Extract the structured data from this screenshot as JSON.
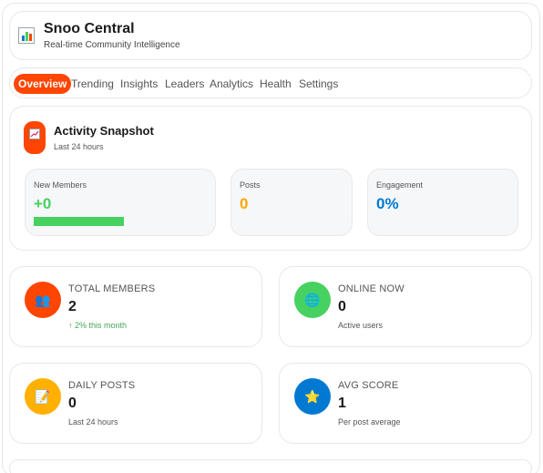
{
  "app": {
    "title": "Snoo Central",
    "subtitle": "Real-time Community Intelligence",
    "icon": "bar-chart-icon"
  },
  "tabs": [
    {
      "label": "Overview",
      "active": true
    },
    {
      "label": "Trending",
      "active": false
    },
    {
      "label": "Insights",
      "active": false
    },
    {
      "label": "Leaders",
      "active": false
    },
    {
      "label": "Analytics",
      "active": false
    },
    {
      "label": "Health",
      "active": false
    },
    {
      "label": "Settings",
      "active": false
    }
  ],
  "snapshot": {
    "title": "Activity Snapshot",
    "subtitle": "Last 24 hours",
    "icon": "trend-chart-icon",
    "metrics": [
      {
        "label": "New Members",
        "value": "+0",
        "color": "#46d160"
      },
      {
        "label": "Posts",
        "value": "0",
        "color": "#ffa500"
      },
      {
        "label": "Engagement",
        "value": "0%",
        "color": "#0079d3"
      }
    ]
  },
  "stats": [
    {
      "label": "Total Members",
      "value": "2",
      "note": "↑ 2% this month",
      "icon": "people-icon",
      "icon_glyph": "👥",
      "color": "#ff4500"
    },
    {
      "label": "Online Now",
      "value": "0",
      "note": "Active users",
      "icon": "globe-icon",
      "icon_glyph": "🌐",
      "color": "#46d160"
    },
    {
      "label": "Daily Posts",
      "value": "0",
      "note": "Last 24 hours",
      "icon": "memo-icon",
      "icon_glyph": "📝",
      "color": "#ffb000"
    },
    {
      "label": "Avg Score",
      "value": "1",
      "note": "Per post average",
      "icon": "star-icon",
      "icon_glyph": "⭐",
      "color": "#0079d3"
    }
  ],
  "colors": {
    "accent": "#ff4500",
    "green": "#46d160",
    "orange": "#ffa500",
    "blue": "#0079d3",
    "yellow": "#ffb000"
  }
}
